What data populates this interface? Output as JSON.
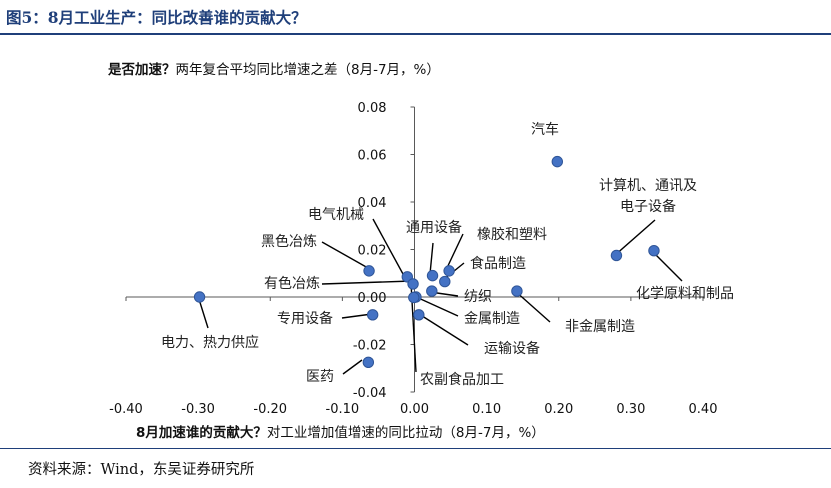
{
  "figure": {
    "title": "图5：8月工业生产：同比改善谁的贡献大？",
    "source": "资料来源：Wind，东吴证券研究所"
  },
  "colors": {
    "point": "#4472c4",
    "point_edge": "#2f5597",
    "axis": "#595959",
    "title": "#1f3f7a"
  },
  "chart_data": {
    "type": "scatter",
    "ylabel": {
      "bold": "是否加速？",
      "rest": "两年复合平均同比增速之差（8月-7月，%）"
    },
    "xlabel": {
      "bold": "8月加速谁的贡献大？",
      "rest": "对工业增加值增速的同比拉动（8月-7月，%）"
    },
    "xlim": [
      -0.4,
      0.4
    ],
    "ylim": [
      -0.04,
      0.08
    ],
    "x_ticks": [
      "-0.40",
      "-0.30",
      "-0.20",
      "-0.10",
      "0.00",
      "0.10",
      "0.20",
      "0.30",
      "0.40"
    ],
    "y_ticks": [
      "-0.04",
      "-0.02",
      "0.00",
      "0.02",
      "0.04",
      "0.06",
      "0.08"
    ],
    "points": [
      {
        "label": "汽车",
        "x": 0.198,
        "y": 0.057
      },
      {
        "label": "计算机、通讯及\n电子设备",
        "x": 0.28,
        "y": 0.0175
      },
      {
        "label": "化学原料和制品",
        "x": 0.332,
        "y": 0.0195
      },
      {
        "label": "非金属制造",
        "x": 0.142,
        "y": 0.0025
      },
      {
        "label": "电力、热力供应",
        "x": -0.298,
        "y": 0.0
      },
      {
        "label": "专用设备",
        "x": -0.058,
        "y": -0.0075
      },
      {
        "label": "医药",
        "x": -0.064,
        "y": -0.0275
      },
      {
        "label": "黑色冶炼",
        "x": -0.063,
        "y": 0.011
      },
      {
        "label": "电气机械",
        "x": -0.01,
        "y": 0.0085
      },
      {
        "label": "有色冶炼",
        "x": -0.002,
        "y": 0.0055
      },
      {
        "label": "通用设备",
        "x": 0.025,
        "y": 0.009
      },
      {
        "label": "橡胶和塑料",
        "x": 0.048,
        "y": 0.011
      },
      {
        "label": "食品制造",
        "x": 0.042,
        "y": 0.0065
      },
      {
        "label": "纺织",
        "x": 0.024,
        "y": 0.0025
      },
      {
        "label": "金属制造",
        "x": 0.002,
        "y": 0.0
      },
      {
        "label": "运输设备",
        "x": 0.006,
        "y": -0.0075
      },
      {
        "label": "农副食品加工",
        "x": -0.001,
        "y": -0.0002
      }
    ]
  }
}
